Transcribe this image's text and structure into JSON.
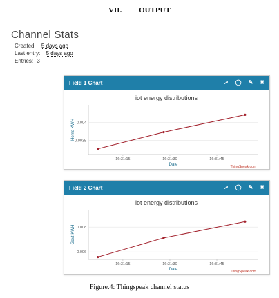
{
  "section": {
    "number": "VII.",
    "title": "OUTPUT"
  },
  "channel": {
    "title": "Channel Stats",
    "created_label": "Created:",
    "created_value": "5 days ago",
    "last_entry_label": "Last entry:",
    "last_entry_value": "5 days ago",
    "entries_label": "Entries:",
    "entries_value": "3"
  },
  "header_icons": [
    "external-link-icon",
    "comment-icon",
    "pencil-icon",
    "close-icon"
  ],
  "caption": "Figure.4: Thingspeak channel status",
  "chart_data": [
    {
      "type": "line",
      "panel_title": "Field 1 Chart",
      "title": "iot energy distributions",
      "xlabel": "Date",
      "ylabel": "Home-KWH",
      "x_ticks": [
        "16:31:15",
        "16:31:30",
        "16:31:45"
      ],
      "y_ticks": [
        "0.0035",
        "0.004"
      ],
      "y_tick_values": [
        0.0035,
        0.004
      ],
      "ylim": [
        0.0031,
        0.0045
      ],
      "x": [
        "16:31:07",
        "16:31:28",
        "16:31:54"
      ],
      "values": [
        0.00326,
        0.00373,
        0.00422
      ],
      "color": "#a3222d",
      "credit": "ThingSpeak.com"
    },
    {
      "type": "line",
      "panel_title": "Field 2 Chart",
      "title": "iot energy distributions",
      "xlabel": "Date",
      "ylabel": "Govt-KWH",
      "x_ticks": [
        "16:31:15",
        "16:31:30",
        "16:31:45"
      ],
      "y_ticks": [
        "0.006",
        "0.008"
      ],
      "y_tick_values": [
        0.006,
        0.008
      ],
      "ylim": [
        0.0054,
        0.0094
      ],
      "x": [
        "16:31:07",
        "16:31:28",
        "16:31:54"
      ],
      "values": [
        0.00559,
        0.00713,
        0.00844
      ],
      "color": "#a3222d",
      "credit": "ThingSpeak.com"
    }
  ]
}
